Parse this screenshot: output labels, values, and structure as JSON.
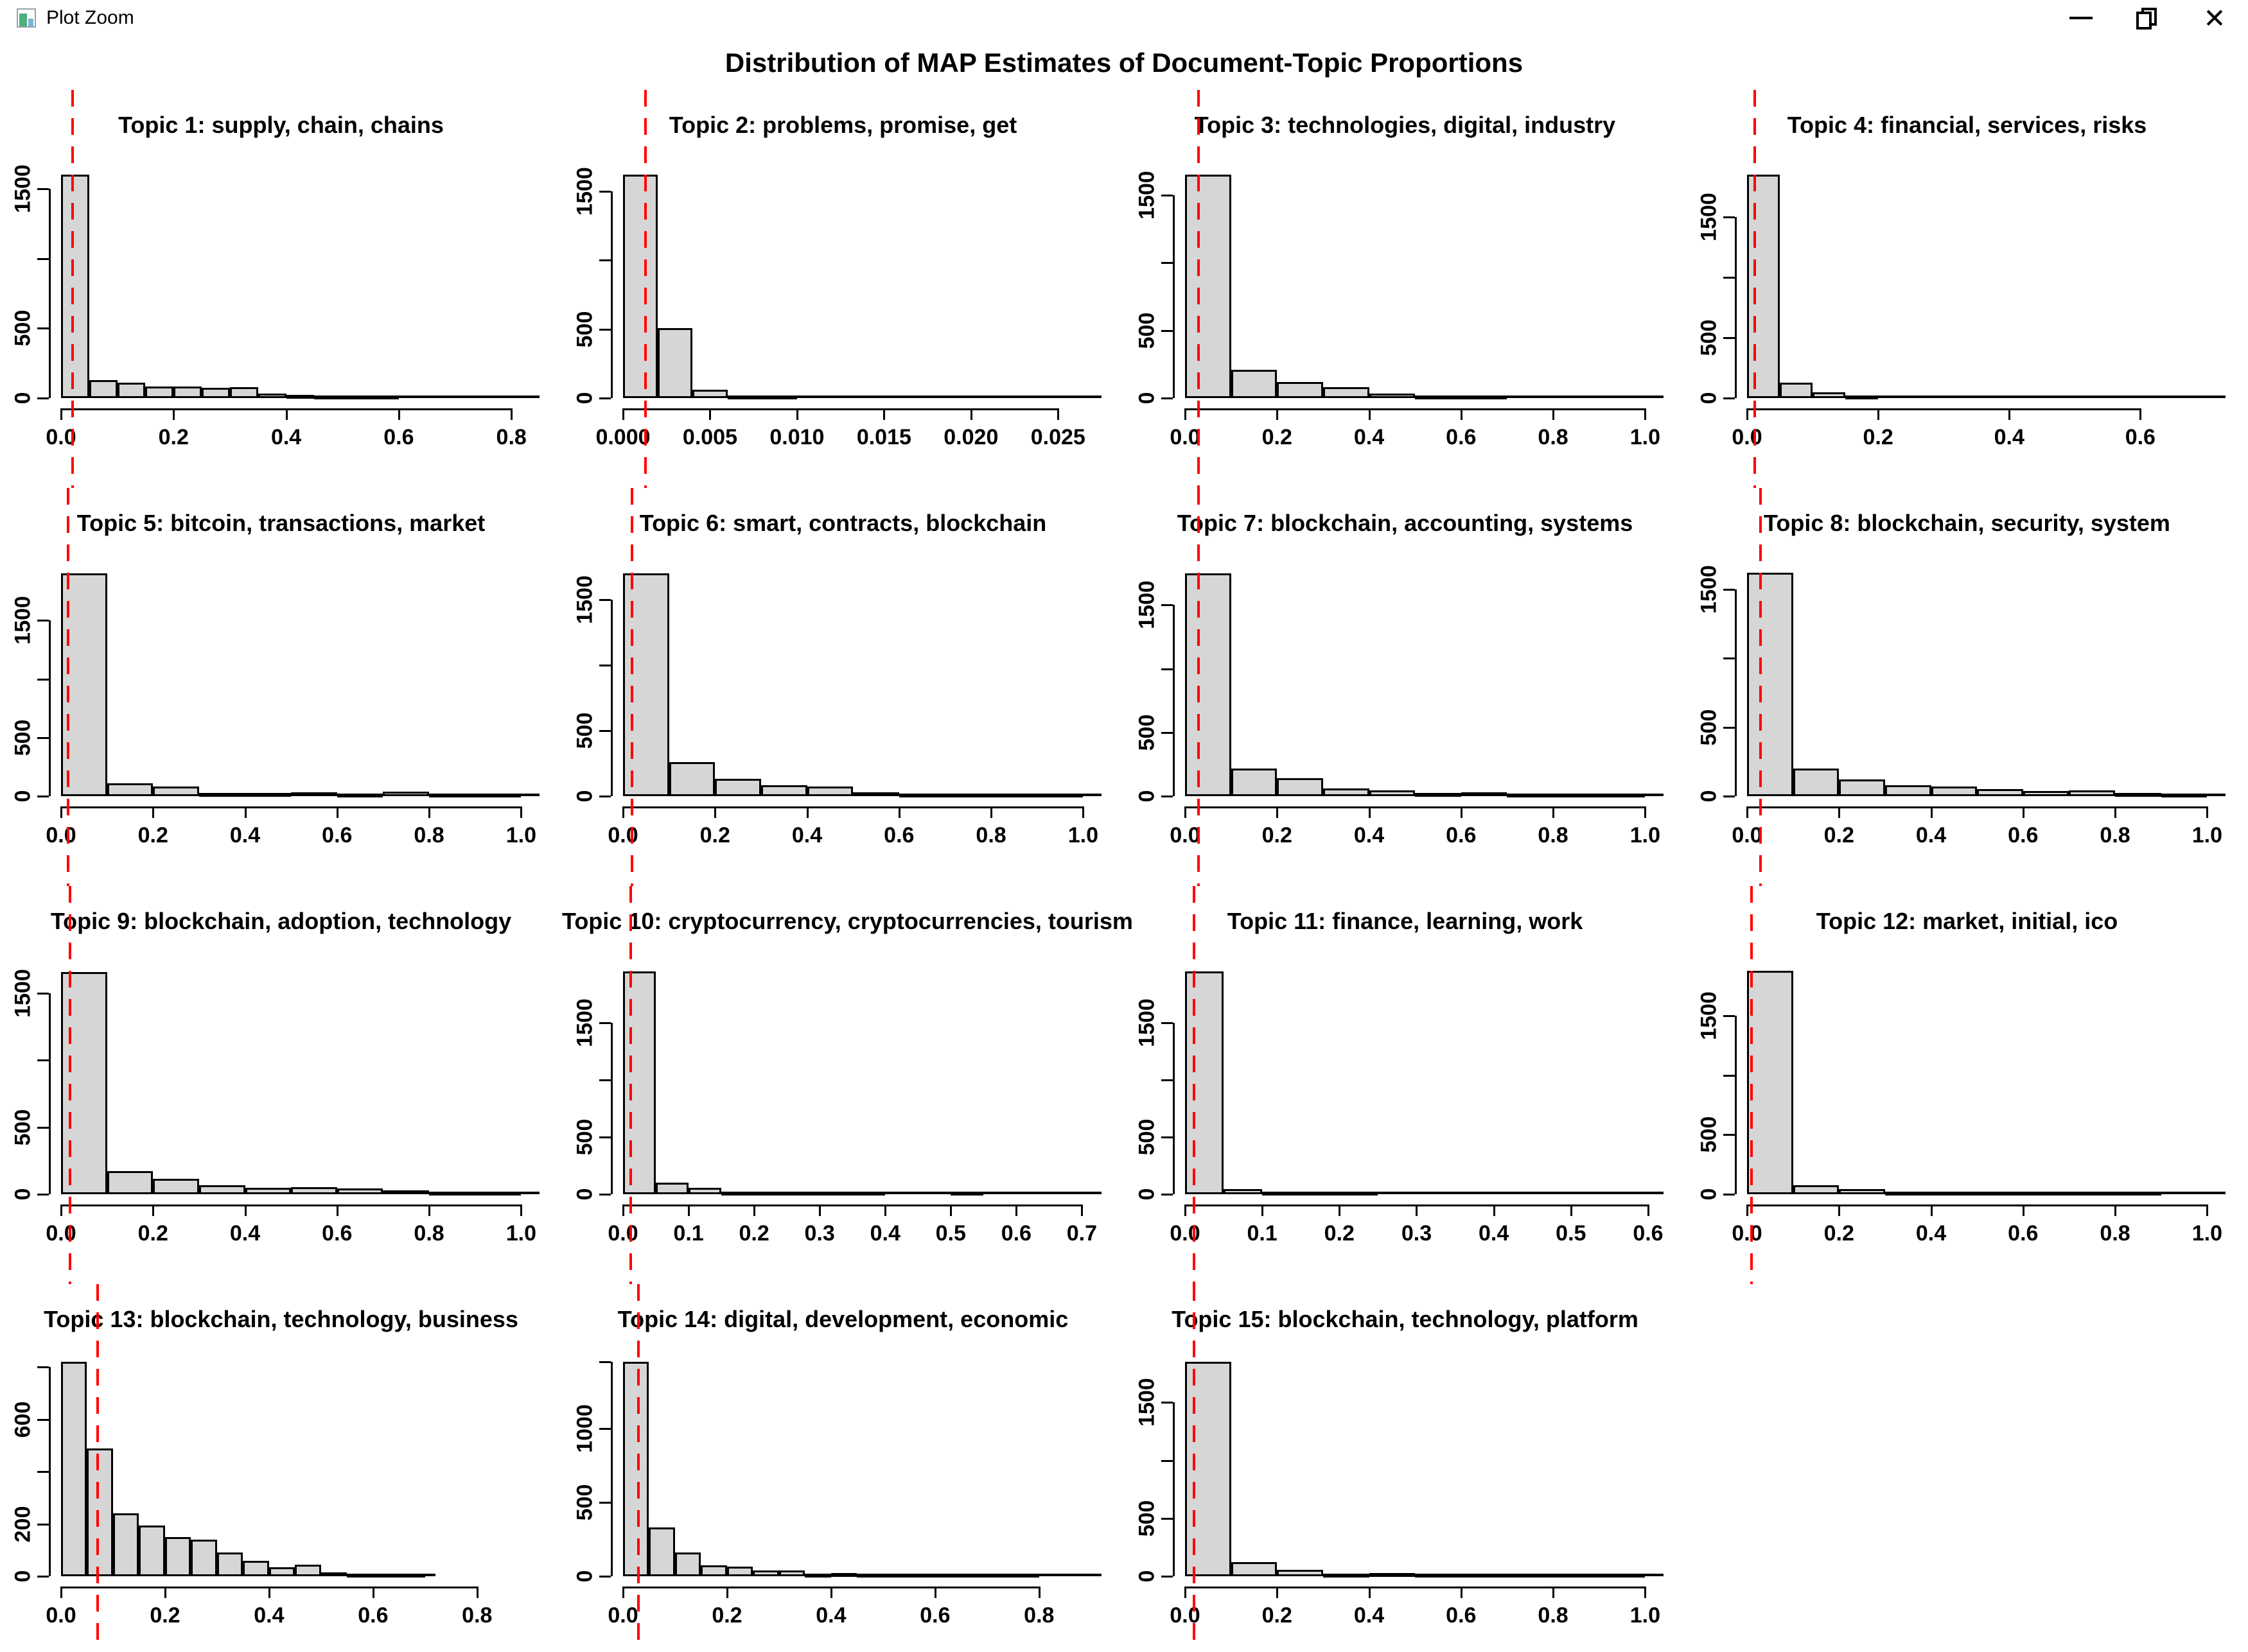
{
  "window": {
    "title": "Plot Zoom",
    "close_glyph": "✕",
    "icons": [
      "app-icon",
      "minimize-icon",
      "restore-icon",
      "close-icon"
    ]
  },
  "main_title": "Distribution of MAP Estimates of Document-Topic Proportions",
  "colors": {
    "background": "#ffffff",
    "bar_fill": "#d6d6d6",
    "bar_border": "#000000",
    "threshold_line": "#ff0000",
    "text": "#000000"
  },
  "chart_data": {
    "type": "bar",
    "subtype": "histogram-grid",
    "title": "Distribution of MAP Estimates of Document-Topic Proportions",
    "grid": {
      "columns": 4,
      "rows": 4,
      "panel_count": 15
    },
    "panels": [
      {
        "id": 1,
        "title": "Topic 1: supply, chain, chains",
        "bin_width": 0.05,
        "counts": [
          1600,
          130,
          110,
          85,
          85,
          75,
          80,
          30,
          25,
          12,
          8,
          8
        ],
        "x_max": 0.85,
        "baseline_end": 0.85,
        "red_line": 0.02,
        "y_max": 1680,
        "x_ticks": [
          {
            "v": 0,
            "label": "0.0"
          },
          {
            "v": 0.2,
            "label": "0.2"
          },
          {
            "v": 0.4,
            "label": "0.4"
          },
          {
            "v": 0.6,
            "label": "0.6"
          },
          {
            "v": 0.8,
            "label": "0.8"
          }
        ],
        "y_ticks": [
          {
            "v": 0,
            "label": "0"
          },
          {
            "v": 500,
            "label": "500"
          },
          {
            "v": 1000,
            "label": ""
          },
          {
            "v": 1500,
            "label": "1500"
          }
        ]
      },
      {
        "id": 2,
        "title": "Topic 2: problems, promise, get",
        "bin_width": 0.002,
        "counts": [
          1620,
          510,
          60,
          12,
          6
        ],
        "x_max": 0.0275,
        "baseline_end": 0.0275,
        "red_line": 0.0013,
        "y_max": 1700,
        "x_ticks": [
          {
            "v": 0,
            "label": "0.000"
          },
          {
            "v": 0.005,
            "label": "0.005"
          },
          {
            "v": 0.01,
            "label": "0.010"
          },
          {
            "v": 0.015,
            "label": "0.015"
          },
          {
            "v": 0.02,
            "label": "0.020"
          },
          {
            "v": 0.025,
            "label": "0.025"
          }
        ],
        "y_ticks": [
          {
            "v": 0,
            "label": "0"
          },
          {
            "v": 500,
            "label": "500"
          },
          {
            "v": 1000,
            "label": ""
          },
          {
            "v": 1500,
            "label": "1500"
          }
        ]
      },
      {
        "id": 3,
        "title": "Topic 3: technologies, digital, industry",
        "bin_width": 0.1,
        "counts": [
          1650,
          210,
          120,
          80,
          35,
          20,
          12
        ],
        "x_max": 1.04,
        "baseline_end": 1.04,
        "red_line": 0.03,
        "y_max": 1730,
        "x_ticks": [
          {
            "v": 0,
            "label": "0.0"
          },
          {
            "v": 0.2,
            "label": "0.2"
          },
          {
            "v": 0.4,
            "label": "0.4"
          },
          {
            "v": 0.6,
            "label": "0.6"
          },
          {
            "v": 0.8,
            "label": "0.8"
          },
          {
            "v": 1.0,
            "label": "1.0"
          }
        ],
        "y_ticks": [
          {
            "v": 0,
            "label": "0"
          },
          {
            "v": 500,
            "label": "500"
          },
          {
            "v": 1000,
            "label": ""
          },
          {
            "v": 1500,
            "label": "1500"
          }
        ]
      },
      {
        "id": 4,
        "title": "Topic 4: financial, services, risks",
        "bin_width": 0.05,
        "counts": [
          1850,
          130,
          50,
          18
        ],
        "x_max": 0.73,
        "baseline_end": 0.73,
        "red_line": 0.012,
        "y_max": 1940,
        "x_ticks": [
          {
            "v": 0,
            "label": "0.0"
          },
          {
            "v": 0.2,
            "label": "0.2"
          },
          {
            "v": 0.4,
            "label": "0.4"
          },
          {
            "v": 0.6,
            "label": "0.6"
          }
        ],
        "y_ticks": [
          {
            "v": 0,
            "label": "0"
          },
          {
            "v": 500,
            "label": "500"
          },
          {
            "v": 1000,
            "label": ""
          },
          {
            "v": 1500,
            "label": "1500"
          }
        ]
      },
      {
        "id": 5,
        "title": "Topic 5: bitcoin, transactions, market",
        "bin_width": 0.1,
        "counts": [
          1900,
          110,
          80,
          30,
          30,
          35,
          20,
          40,
          12,
          8
        ],
        "x_max": 1.04,
        "baseline_end": 1.04,
        "red_line": 0.015,
        "y_max": 2000,
        "x_ticks": [
          {
            "v": 0,
            "label": "0.0"
          },
          {
            "v": 0.2,
            "label": "0.2"
          },
          {
            "v": 0.4,
            "label": "0.4"
          },
          {
            "v": 0.6,
            "label": "0.6"
          },
          {
            "v": 0.8,
            "label": "0.8"
          },
          {
            "v": 1.0,
            "label": "1.0"
          }
        ],
        "y_ticks": [
          {
            "v": 0,
            "label": "0"
          },
          {
            "v": 500,
            "label": "500"
          },
          {
            "v": 1000,
            "label": ""
          },
          {
            "v": 1500,
            "label": "1500"
          }
        ]
      },
      {
        "id": 6,
        "title": "Topic 6: smart, contracts, blockchain",
        "bin_width": 0.1,
        "counts": [
          1700,
          260,
          130,
          85,
          75,
          30,
          12,
          10,
          8,
          6
        ],
        "x_max": 1.04,
        "baseline_end": 1.04,
        "red_line": 0.02,
        "y_max": 1790,
        "x_ticks": [
          {
            "v": 0,
            "label": "0.0"
          },
          {
            "v": 0.2,
            "label": "0.2"
          },
          {
            "v": 0.4,
            "label": "0.4"
          },
          {
            "v": 0.6,
            "label": "0.6"
          },
          {
            "v": 0.8,
            "label": "0.8"
          },
          {
            "v": 1.0,
            "label": "1.0"
          }
        ],
        "y_ticks": [
          {
            "v": 0,
            "label": "0"
          },
          {
            "v": 500,
            "label": "500"
          },
          {
            "v": 1000,
            "label": ""
          },
          {
            "v": 1500,
            "label": "1500"
          }
        ]
      },
      {
        "id": 7,
        "title": "Topic 7: blockchain, accounting, systems",
        "bin_width": 0.1,
        "counts": [
          1750,
          215,
          140,
          60,
          45,
          25,
          30,
          12,
          10,
          4
        ],
        "x_max": 1.04,
        "baseline_end": 1.04,
        "red_line": 0.03,
        "y_max": 1840,
        "x_ticks": [
          {
            "v": 0,
            "label": "0.0"
          },
          {
            "v": 0.2,
            "label": "0.2"
          },
          {
            "v": 0.4,
            "label": "0.4"
          },
          {
            "v": 0.6,
            "label": "0.6"
          },
          {
            "v": 0.8,
            "label": "0.8"
          },
          {
            "v": 1.0,
            "label": "1.0"
          }
        ],
        "y_ticks": [
          {
            "v": 0,
            "label": "0"
          },
          {
            "v": 500,
            "label": "500"
          },
          {
            "v": 1000,
            "label": ""
          },
          {
            "v": 1500,
            "label": "1500"
          }
        ]
      },
      {
        "id": 8,
        "title": "Topic 8: blockchain, security, system",
        "bin_width": 0.1,
        "counts": [
          1620,
          200,
          120,
          80,
          70,
          50,
          35,
          40,
          25,
          10
        ],
        "x_max": 1.04,
        "baseline_end": 1.04,
        "red_line": 0.03,
        "y_max": 1700,
        "x_ticks": [
          {
            "v": 0,
            "label": "0.0"
          },
          {
            "v": 0.2,
            "label": "0.2"
          },
          {
            "v": 0.4,
            "label": "0.4"
          },
          {
            "v": 0.6,
            "label": "0.6"
          },
          {
            "v": 0.8,
            "label": "0.8"
          },
          {
            "v": 1.0,
            "label": "1.0"
          }
        ],
        "y_ticks": [
          {
            "v": 0,
            "label": "0"
          },
          {
            "v": 500,
            "label": "500"
          },
          {
            "v": 1000,
            "label": ""
          },
          {
            "v": 1500,
            "label": "1500"
          }
        ]
      },
      {
        "id": 9,
        "title": "Topic 9: blockchain, adoption, technology",
        "bin_width": 0.1,
        "counts": [
          1660,
          175,
          115,
          65,
          50,
          55,
          45,
          30,
          15,
          5
        ],
        "x_max": 1.04,
        "baseline_end": 1.04,
        "red_line": 0.02,
        "y_max": 1750,
        "x_ticks": [
          {
            "v": 0,
            "label": "0.0"
          },
          {
            "v": 0.2,
            "label": "0.2"
          },
          {
            "v": 0.4,
            "label": "0.4"
          },
          {
            "v": 0.6,
            "label": "0.6"
          },
          {
            "v": 0.8,
            "label": "0.8"
          },
          {
            "v": 1.0,
            "label": "1.0"
          }
        ],
        "y_ticks": [
          {
            "v": 0,
            "label": "0"
          },
          {
            "v": 500,
            "label": "500"
          },
          {
            "v": 1000,
            "label": ""
          },
          {
            "v": 1500,
            "label": "1500"
          }
        ]
      },
      {
        "id": 10,
        "title": "Topic 10: cryptocurrency, cryptocurrencies, tourism",
        "bin_width": 0.05,
        "counts": [
          1950,
          100,
          55,
          25,
          25,
          25,
          12,
          8,
          0,
          0,
          12,
          0
        ],
        "x_max": 0.73,
        "baseline_end": 0.73,
        "red_line": 0.012,
        "y_max": 2050,
        "x_ticks": [
          {
            "v": 0,
            "label": "0.0"
          },
          {
            "v": 0.1,
            "label": "0.1"
          },
          {
            "v": 0.2,
            "label": "0.2"
          },
          {
            "v": 0.3,
            "label": "0.3"
          },
          {
            "v": 0.4,
            "label": "0.4"
          },
          {
            "v": 0.5,
            "label": "0.5"
          },
          {
            "v": 0.6,
            "label": "0.6"
          },
          {
            "v": 0.7,
            "label": "0.7"
          }
        ],
        "y_ticks": [
          {
            "v": 0,
            "label": "0"
          },
          {
            "v": 500,
            "label": "500"
          },
          {
            "v": 1000,
            "label": ""
          },
          {
            "v": 1500,
            "label": "1500"
          }
        ]
      },
      {
        "id": 11,
        "title": "Topic 11: finance, learning, work",
        "bin_width": 0.05,
        "counts": [
          1950,
          45,
          12,
          10,
          10
        ],
        "x_max": 0.62,
        "baseline_end": 0.62,
        "red_line": 0.012,
        "y_max": 2050,
        "x_ticks": [
          {
            "v": 0,
            "label": "0.0"
          },
          {
            "v": 0.1,
            "label": "0.1"
          },
          {
            "v": 0.2,
            "label": "0.2"
          },
          {
            "v": 0.3,
            "label": "0.3"
          },
          {
            "v": 0.4,
            "label": "0.4"
          },
          {
            "v": 0.5,
            "label": "0.5"
          },
          {
            "v": 0.6,
            "label": "0.6"
          }
        ],
        "y_ticks": [
          {
            "v": 0,
            "label": "0"
          },
          {
            "v": 500,
            "label": "500"
          },
          {
            "v": 1000,
            "label": ""
          },
          {
            "v": 1500,
            "label": "1500"
          }
        ]
      },
      {
        "id": 12,
        "title": "Topic 12: market, initial, ico",
        "bin_width": 0.1,
        "counts": [
          1880,
          75,
          45,
          12,
          10,
          8,
          8,
          8,
          6
        ],
        "x_max": 1.04,
        "baseline_end": 1.04,
        "red_line": 0.01,
        "y_max": 1970,
        "x_ticks": [
          {
            "v": 0,
            "label": "0.0"
          },
          {
            "v": 0.2,
            "label": "0.2"
          },
          {
            "v": 0.4,
            "label": "0.4"
          },
          {
            "v": 0.6,
            "label": "0.6"
          },
          {
            "v": 0.8,
            "label": "0.8"
          },
          {
            "v": 1.0,
            "label": "1.0"
          }
        ],
        "y_ticks": [
          {
            "v": 0,
            "label": "0"
          },
          {
            "v": 500,
            "label": "500"
          },
          {
            "v": 1000,
            "label": ""
          },
          {
            "v": 1500,
            "label": "1500"
          }
        ]
      },
      {
        "id": 13,
        "title": "Topic 13: blockchain, technology, business",
        "bin_width": 0.05,
        "counts": [
          820,
          490,
          240,
          195,
          150,
          140,
          90,
          60,
          35,
          45,
          15,
          8,
          5,
          5
        ],
        "x_max": 0.92,
        "baseline_end": 0.72,
        "red_line": 0.07,
        "y_max": 860,
        "x_ticks": [
          {
            "v": 0,
            "label": "0.0"
          },
          {
            "v": 0.2,
            "label": "0.2"
          },
          {
            "v": 0.4,
            "label": "0.4"
          },
          {
            "v": 0.6,
            "label": "0.6"
          },
          {
            "v": 0.8,
            "label": "0.8"
          }
        ],
        "y_ticks": [
          {
            "v": 0,
            "label": "0"
          },
          {
            "v": 200,
            "label": "200"
          },
          {
            "v": 400,
            "label": ""
          },
          {
            "v": 600,
            "label": "600"
          },
          {
            "v": 800,
            "label": ""
          }
        ]
      },
      {
        "id": 14,
        "title": "Topic 14: digital, development, economic",
        "bin_width": 0.05,
        "counts": [
          1450,
          330,
          160,
          75,
          65,
          40,
          40,
          5,
          20,
          4,
          4,
          4,
          3,
          3,
          3,
          10
        ],
        "x_max": 0.92,
        "baseline_end": 0.92,
        "red_line": 0.03,
        "y_max": 1520,
        "x_ticks": [
          {
            "v": 0,
            "label": "0.0"
          },
          {
            "v": 0.2,
            "label": "0.2"
          },
          {
            "v": 0.4,
            "label": "0.4"
          },
          {
            "v": 0.6,
            "label": "0.6"
          },
          {
            "v": 0.8,
            "label": "0.8"
          }
        ],
        "y_ticks": [
          {
            "v": 0,
            "label": "0"
          },
          {
            "v": 500,
            "label": "500"
          },
          {
            "v": 1000,
            "label": "1000"
          },
          {
            "v": 1450,
            "label": ""
          }
        ]
      },
      {
        "id": 15,
        "title": "Topic 15: blockchain, technology, platform",
        "bin_width": 0.1,
        "counts": [
          1850,
          120,
          55,
          12,
          25,
          10,
          8,
          8,
          4,
          3
        ],
        "x_max": 1.04,
        "baseline_end": 1.04,
        "red_line": 0.02,
        "y_max": 1940,
        "x_ticks": [
          {
            "v": 0,
            "label": "0.0"
          },
          {
            "v": 0.2,
            "label": "0.2"
          },
          {
            "v": 0.4,
            "label": "0.4"
          },
          {
            "v": 0.6,
            "label": "0.6"
          },
          {
            "v": 0.8,
            "label": "0.8"
          },
          {
            "v": 1.0,
            "label": "1.0"
          }
        ],
        "y_ticks": [
          {
            "v": 0,
            "label": "0"
          },
          {
            "v": 500,
            "label": "500"
          },
          {
            "v": 1000,
            "label": ""
          },
          {
            "v": 1500,
            "label": "1500"
          }
        ]
      }
    ]
  }
}
